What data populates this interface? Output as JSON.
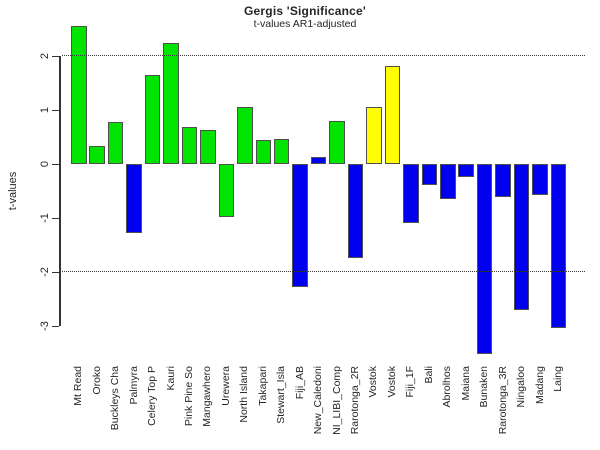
{
  "header": {
    "title": "Gergis 'Significance'",
    "subtitle": "t-values AR1-adjusted"
  },
  "y_axis": {
    "label": "t-values",
    "ticks": [
      "2",
      "1",
      "0",
      "-1",
      "-2",
      "-3"
    ],
    "tick_values": [
      2,
      1,
      0,
      -1,
      -2,
      -3
    ]
  },
  "colors": {
    "tree_ring_green": "#00e400",
    "coral_blue": "#0000ee",
    "ice_core_yellow": "#ffff00",
    "bar_border": "#4f4f4f",
    "axis": "#333333",
    "reference_line": "#3c3c3c",
    "background": "#ffffff"
  },
  "chart_data": {
    "type": "bar",
    "title": "Gergis 'Significance'",
    "subtitle": "t-values AR1-adjusted",
    "xlabel": "",
    "ylabel": "t-values",
    "ylim": [
      -3.6,
      2.6
    ],
    "yticks": [
      2,
      1,
      0,
      -1,
      -2,
      -3
    ],
    "grid": "off",
    "legend": "none",
    "reference_lines_y": [
      2,
      -2
    ],
    "reference_line_style": "dotted",
    "categories": [
      "Mt Read",
      "Oroko",
      "Buckleys Cha",
      "Palmyra",
      "Celery Top P",
      "Kauri",
      "Pink Pine So",
      "Mangawhero",
      "Urewera",
      "North Island",
      "Takapari",
      "Stewart_Isla",
      "Fiji_AB",
      "New_Caledoni",
      "NI_LIBI_Comp",
      "Rarotonga_2R",
      "Vostok",
      "Vostok",
      "Fiji_1F",
      "Bali",
      "Abrolhos",
      "Maiana",
      "Bunaken",
      "Rarotonga_3R",
      "Ningaloo",
      "Madang",
      "Laing"
    ],
    "values": [
      2.56,
      0.33,
      0.78,
      -1.27,
      1.64,
      2.25,
      0.68,
      0.63,
      -0.98,
      1.06,
      0.44,
      0.46,
      -2.27,
      0.13,
      0.8,
      -1.74,
      1.05,
      1.81,
      -1.09,
      -0.39,
      -0.64,
      -0.24,
      -3.52,
      -0.61,
      -2.7,
      -0.57,
      -3.04
    ],
    "bar_colors": [
      "#00e400",
      "#00e400",
      "#00e400",
      "#0000ee",
      "#00e400",
      "#00e400",
      "#00e400",
      "#00e400",
      "#00e400",
      "#00e400",
      "#00e400",
      "#00e400",
      "#0000ee",
      "#0000ee",
      "#00e400",
      "#0000ee",
      "#ffff00",
      "#ffff00",
      "#0000ee",
      "#0000ee",
      "#0000ee",
      "#0000ee",
      "#0000ee",
      "#0000ee",
      "#0000ee",
      "#0000ee",
      "#0000ee"
    ]
  }
}
